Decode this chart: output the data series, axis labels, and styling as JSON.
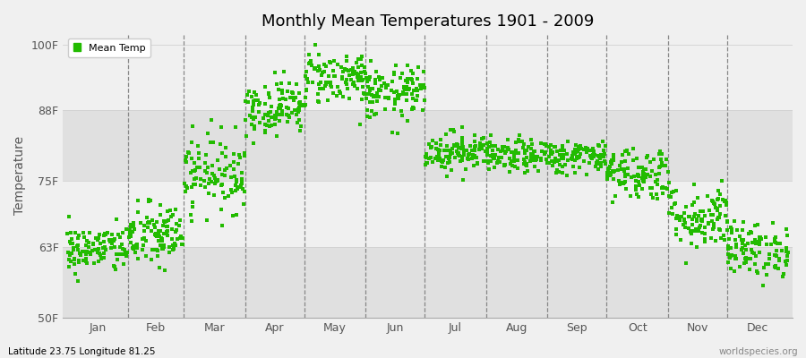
{
  "title": "Monthly Mean Temperatures 1901 - 2009",
  "ylabel": "Temperature",
  "xlabel_bottom_left": "Latitude 23.75 Longitude 81.25",
  "xlabel_bottom_right": "worldspecies.org",
  "yticks": [
    50,
    63,
    75,
    88,
    100
  ],
  "ytick_labels": [
    "50F",
    "63F",
    "75F",
    "88F",
    "100F"
  ],
  "legend_label": "Mean Temp",
  "dot_color": "#22bb00",
  "dot_size": 5,
  "bg_color": "#f0f0f0",
  "plot_bg_color": "#f0f0f0",
  "alt_band_color": "#e0e0e0",
  "n_years": 109,
  "monthly_means": [
    62.5,
    65.0,
    76.5,
    88.5,
    94.0,
    91.0,
    80.5,
    79.5,
    79.5,
    76.5,
    68.5,
    62.5
  ],
  "monthly_stds": [
    2.2,
    3.0,
    3.5,
    2.5,
    2.5,
    2.5,
    1.8,
    1.5,
    1.5,
    2.5,
    3.0,
    2.5
  ],
  "seed": 42,
  "month_names": [
    "Jan",
    "Feb",
    "Mar",
    "Apr",
    "May",
    "Jun",
    "Jul",
    "Aug",
    "Sep",
    "Oct",
    "Nov",
    "Dec"
  ],
  "month_days": [
    31,
    28,
    31,
    30,
    31,
    30,
    31,
    31,
    30,
    31,
    30,
    31
  ]
}
